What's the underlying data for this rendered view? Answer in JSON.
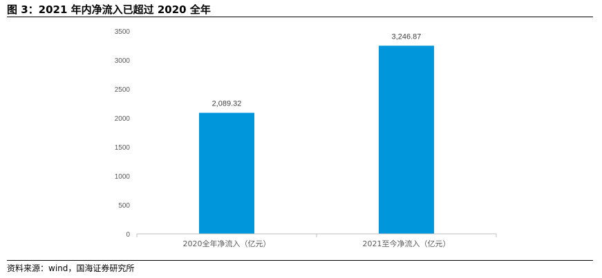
{
  "figure": {
    "title": "图 3：2021 年内净流入已超过 2020 全年",
    "source": "资料来源：wind，国海证券研究所"
  },
  "colors": {
    "bar": "#0096DC",
    "axis": "#BFBFBF",
    "tick_text": "#595959"
  },
  "chart_data": {
    "type": "bar",
    "title": "",
    "xlabel": "",
    "ylabel": "",
    "categories": [
      "2020全年净流入（亿元）",
      "2021至今净流入（亿元）"
    ],
    "values": [
      2089.32,
      3246.87
    ],
    "data_labels": [
      "2,089.32",
      "3,246.87"
    ],
    "ylim": [
      0,
      3500
    ],
    "yticks": [
      0,
      500,
      1000,
      1500,
      2000,
      2500,
      3000,
      3500
    ],
    "grid": false,
    "legend": "none"
  }
}
